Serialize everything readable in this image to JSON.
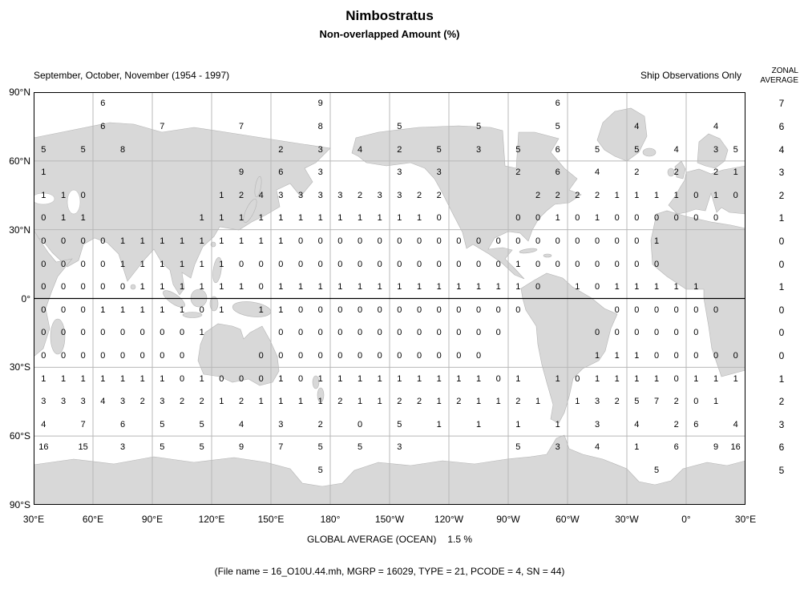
{
  "header": {
    "title": "Nimbostratus",
    "subtitle": "Non-overlapped Amount (%)",
    "season_label": "September, October, November (1954 - 1997)",
    "source_label": "Ship Observations Only",
    "zonal_header_line1": "ZONAL",
    "zonal_header_line2": "AVERAGE"
  },
  "footer": {
    "global_average_label": "GLOBAL AVERAGE (OCEAN)",
    "global_average_value": "1.5 %",
    "file_info": "(File name = 16_O10U.44.mh, MGRP = 16029, TYPE = 21, PCODE = 4, SN = 44)"
  },
  "colors": {
    "land": "#d8d8d8",
    "grid": "#b8b8b8",
    "border": "#000000",
    "text": "#000000"
  },
  "chart_data": {
    "type": "heatmap",
    "title": "Nimbostratus",
    "subtitle": "Non-overlapped Amount (%)",
    "season": "September, October, November (1954 - 1997)",
    "source": "Ship Observations Only",
    "units": "percent cloud amount, 10x10 degree ocean boxes",
    "grid": {
      "lon_origin": "30°E",
      "lon_cell_deg": 10,
      "lat_cell_deg": 10
    },
    "lon_edge_labels": [
      "30°E",
      "60°E",
      "90°E",
      "120°E",
      "150°E",
      "180°",
      "150°W",
      "120°W",
      "90°W",
      "60°W",
      "30°W",
      "0°",
      "30°E"
    ],
    "lat_edge_labels": [
      "90°N",
      "60°N",
      "30°N",
      "0°",
      "30°S",
      "60°S",
      "90°S"
    ],
    "global_average_ocean": "1.5 %",
    "rows": [
      {
        "lat": "85N",
        "zonal_average": 7,
        "values": [
          null,
          null,
          null,
          6,
          null,
          null,
          null,
          null,
          null,
          null,
          null,
          null,
          null,
          null,
          9,
          null,
          null,
          null,
          null,
          null,
          null,
          null,
          null,
          null,
          null,
          null,
          6,
          null,
          null,
          null,
          null,
          null,
          null,
          null,
          null,
          null
        ]
      },
      {
        "lat": "75N",
        "zonal_average": 6,
        "values": [
          null,
          null,
          null,
          6,
          null,
          null,
          7,
          null,
          null,
          null,
          7,
          null,
          null,
          null,
          8,
          null,
          null,
          null,
          5,
          null,
          null,
          null,
          5,
          null,
          null,
          null,
          5,
          null,
          null,
          null,
          4,
          null,
          null,
          null,
          4,
          null
        ]
      },
      {
        "lat": "65N",
        "zonal_average": 4,
        "values": [
          5,
          null,
          5,
          null,
          8,
          null,
          null,
          null,
          null,
          null,
          null,
          null,
          2,
          null,
          3,
          null,
          4,
          null,
          2,
          null,
          5,
          null,
          3,
          null,
          5,
          null,
          6,
          null,
          5,
          null,
          5,
          null,
          4,
          null,
          3,
          5
        ]
      },
      {
        "lat": "55N",
        "zonal_average": 3,
        "values": [
          1,
          null,
          null,
          null,
          null,
          null,
          null,
          null,
          null,
          null,
          9,
          null,
          6,
          null,
          3,
          null,
          null,
          null,
          3,
          null,
          3,
          null,
          null,
          null,
          2,
          null,
          6,
          null,
          4,
          null,
          2,
          null,
          2,
          null,
          2,
          1
        ]
      },
      {
        "lat": "45N",
        "zonal_average": 2,
        "values": [
          1,
          1,
          0,
          null,
          null,
          null,
          null,
          null,
          null,
          1,
          2,
          4,
          3,
          3,
          3,
          3,
          2,
          3,
          3,
          2,
          2,
          null,
          null,
          null,
          null,
          2,
          2,
          2,
          2,
          1,
          1,
          1,
          1,
          0,
          1,
          0
        ]
      },
      {
        "lat": "35N",
        "zonal_average": 1,
        "values": [
          0,
          1,
          1,
          null,
          null,
          null,
          null,
          null,
          1,
          1,
          1,
          1,
          1,
          1,
          1,
          1,
          1,
          1,
          1,
          1,
          0,
          null,
          null,
          null,
          0,
          0,
          1,
          0,
          1,
          0,
          0,
          0,
          0,
          0,
          0,
          null
        ]
      },
      {
        "lat": "25N",
        "zonal_average": 0,
        "values": [
          0,
          0,
          0,
          0,
          1,
          1,
          1,
          1,
          1,
          1,
          1,
          1,
          1,
          0,
          0,
          0,
          0,
          0,
          0,
          0,
          0,
          0,
          0,
          0,
          0,
          0,
          0,
          0,
          0,
          0,
          0,
          1,
          null,
          null,
          null,
          null
        ]
      },
      {
        "lat": "15N",
        "zonal_average": 0,
        "values": [
          0,
          0,
          0,
          0,
          1,
          1,
          1,
          1,
          1,
          1,
          0,
          0,
          0,
          0,
          0,
          0,
          0,
          0,
          0,
          0,
          0,
          0,
          0,
          0,
          1,
          0,
          0,
          0,
          0,
          0,
          0,
          0,
          null,
          null,
          null,
          null
        ]
      },
      {
        "lat": "5N",
        "zonal_average": 1,
        "values": [
          0,
          0,
          0,
          0,
          0,
          1,
          1,
          1,
          1,
          1,
          1,
          0,
          1,
          1,
          1,
          1,
          1,
          1,
          1,
          1,
          1,
          1,
          1,
          1,
          1,
          0,
          null,
          1,
          0,
          1,
          1,
          1,
          1,
          1,
          null,
          null
        ]
      },
      {
        "lat": "5S",
        "zonal_average": 0,
        "values": [
          0,
          0,
          0,
          1,
          1,
          1,
          1,
          1,
          0,
          1,
          null,
          1,
          1,
          0,
          0,
          0,
          0,
          0,
          0,
          0,
          0,
          0,
          0,
          0,
          0,
          null,
          null,
          null,
          null,
          0,
          0,
          0,
          0,
          0,
          0,
          null
        ]
      },
      {
        "lat": "15S",
        "zonal_average": 0,
        "values": [
          0,
          0,
          0,
          0,
          0,
          0,
          0,
          0,
          1,
          null,
          null,
          null,
          0,
          0,
          0,
          0,
          0,
          0,
          0,
          0,
          0,
          0,
          0,
          0,
          null,
          null,
          null,
          null,
          0,
          0,
          0,
          0,
          0,
          0,
          null,
          null
        ]
      },
      {
        "lat": "25S",
        "zonal_average": 0,
        "values": [
          0,
          0,
          0,
          0,
          0,
          0,
          0,
          0,
          null,
          null,
          null,
          0,
          0,
          0,
          0,
          0,
          0,
          0,
          0,
          0,
          0,
          0,
          0,
          null,
          null,
          null,
          null,
          null,
          1,
          1,
          1,
          0,
          0,
          0,
          0,
          0
        ]
      },
      {
        "lat": "35S",
        "zonal_average": 1,
        "values": [
          1,
          1,
          1,
          1,
          1,
          1,
          1,
          0,
          1,
          0,
          0,
          0,
          1,
          0,
          1,
          1,
          1,
          1,
          1,
          1,
          1,
          1,
          1,
          0,
          1,
          null,
          1,
          0,
          1,
          1,
          1,
          1,
          0,
          1,
          1,
          1
        ]
      },
      {
        "lat": "45S",
        "zonal_average": 2,
        "values": [
          3,
          3,
          3,
          4,
          3,
          2,
          3,
          2,
          2,
          1,
          2,
          1,
          1,
          1,
          1,
          2,
          1,
          1,
          2,
          2,
          1,
          2,
          1,
          1,
          2,
          1,
          null,
          1,
          3,
          2,
          5,
          7,
          2,
          0,
          1,
          null
        ]
      },
      {
        "lat": "55S",
        "zonal_average": 3,
        "values": [
          4,
          null,
          7,
          null,
          6,
          null,
          5,
          null,
          5,
          null,
          4,
          null,
          3,
          null,
          2,
          null,
          0,
          null,
          5,
          null,
          1,
          null,
          1,
          null,
          1,
          null,
          1,
          null,
          3,
          null,
          4,
          null,
          2,
          6,
          null,
          4
        ]
      },
      {
        "lat": "65S",
        "zonal_average": 6,
        "values": [
          16,
          null,
          15,
          null,
          3,
          null,
          5,
          null,
          5,
          null,
          9,
          null,
          7,
          null,
          5,
          null,
          5,
          null,
          3,
          null,
          null,
          null,
          null,
          null,
          5,
          null,
          3,
          null,
          4,
          null,
          1,
          null,
          6,
          null,
          9,
          16
        ]
      },
      {
        "lat": "75S",
        "zonal_average": 5,
        "values": [
          null,
          null,
          null,
          null,
          null,
          null,
          null,
          null,
          null,
          null,
          null,
          null,
          null,
          null,
          5,
          null,
          null,
          null,
          null,
          null,
          null,
          null,
          null,
          null,
          null,
          null,
          null,
          null,
          null,
          null,
          null,
          5,
          null,
          null,
          null,
          null
        ]
      }
    ]
  }
}
